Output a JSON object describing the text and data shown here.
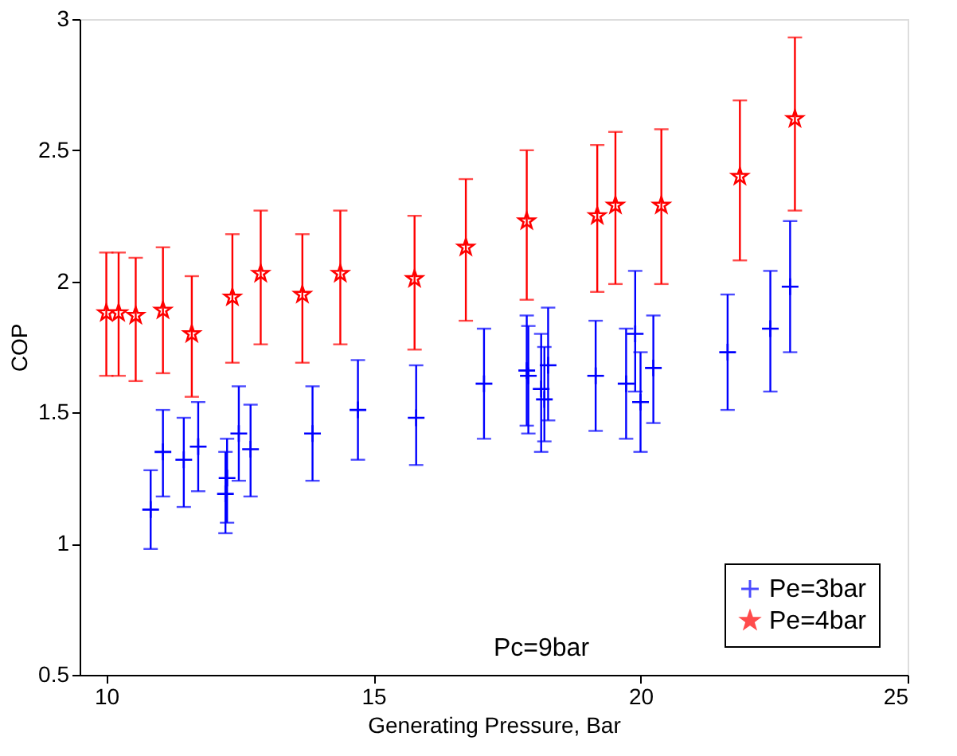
{
  "chart_data": {
    "type": "scatter",
    "xlabel": "Generating Pressure, Bar",
    "ylabel": "COP",
    "xlim": [
      9.5,
      25
    ],
    "xticks": [
      10,
      15,
      20,
      25
    ],
    "ylim": [
      0.5,
      3
    ],
    "yticks": [
      0.5,
      1,
      1.5,
      2,
      2.5,
      3
    ],
    "grid": false,
    "legend": "bottom right",
    "annotations": [
      "Pc=9bar"
    ],
    "series": [
      {
        "name": "Pe=3bar",
        "color": "#0000ff",
        "marker": "cross",
        "x": [
          10.83,
          11.06,
          11.45,
          11.72,
          12.23,
          12.26,
          12.48,
          12.7,
          13.86,
          14.71,
          15.8,
          17.07,
          17.87,
          17.9,
          18.14,
          18.2,
          18.27,
          19.16,
          19.73,
          19.9,
          20.0,
          20.24,
          21.63,
          22.43,
          22.8
        ],
        "values": [
          1.13,
          1.35,
          1.32,
          1.37,
          1.19,
          1.25,
          1.42,
          1.36,
          1.42,
          1.51,
          1.48,
          1.61,
          1.66,
          1.64,
          1.59,
          1.55,
          1.68,
          1.64,
          1.61,
          1.8,
          1.54,
          1.67,
          1.73,
          1.82,
          1.98
        ],
        "errors": [
          [
            0.98,
            1.28
          ],
          [
            1.18,
            1.51
          ],
          [
            1.14,
            1.48
          ],
          [
            1.2,
            1.54
          ],
          [
            1.04,
            1.35
          ],
          [
            1.08,
            1.4
          ],
          [
            1.24,
            1.6
          ],
          [
            1.18,
            1.53
          ],
          [
            1.24,
            1.6
          ],
          [
            1.32,
            1.7
          ],
          [
            1.3,
            1.68
          ],
          [
            1.4,
            1.82
          ],
          [
            1.45,
            1.87
          ],
          [
            1.42,
            1.83
          ],
          [
            1.35,
            1.8
          ],
          [
            1.39,
            1.75
          ],
          [
            1.47,
            1.9
          ],
          [
            1.43,
            1.85
          ],
          [
            1.4,
            1.82
          ],
          [
            1.58,
            2.04
          ],
          [
            1.35,
            1.73
          ],
          [
            1.46,
            1.87
          ],
          [
            1.51,
            1.95
          ],
          [
            1.58,
            2.04
          ],
          [
            1.73,
            2.23
          ]
        ]
      },
      {
        "name": "Pe=4bar",
        "color": "#ff0000",
        "marker": "star",
        "x": [
          10.0,
          10.23,
          10.55,
          11.06,
          11.6,
          12.36,
          12.89,
          13.67,
          14.38,
          15.77,
          16.73,
          17.87,
          19.19,
          19.53,
          20.39,
          21.86,
          22.89
        ],
        "values": [
          1.88,
          1.88,
          1.87,
          1.89,
          1.8,
          1.94,
          2.03,
          1.95,
          2.03,
          2.01,
          2.13,
          2.23,
          2.25,
          2.29,
          2.29,
          2.4,
          2.62
        ],
        "errors": [
          [
            1.64,
            2.11
          ],
          [
            1.64,
            2.11
          ],
          [
            1.62,
            2.09
          ],
          [
            1.65,
            2.13
          ],
          [
            1.56,
            2.02
          ],
          [
            1.69,
            2.18
          ],
          [
            1.76,
            2.27
          ],
          [
            1.69,
            2.18
          ],
          [
            1.76,
            2.27
          ],
          [
            1.74,
            2.25
          ],
          [
            1.85,
            2.39
          ],
          [
            1.93,
            2.5
          ],
          [
            1.96,
            2.52
          ],
          [
            1.99,
            2.57
          ],
          [
            1.99,
            2.58
          ],
          [
            2.08,
            2.69
          ],
          [
            2.27,
            2.93
          ]
        ]
      }
    ]
  }
}
